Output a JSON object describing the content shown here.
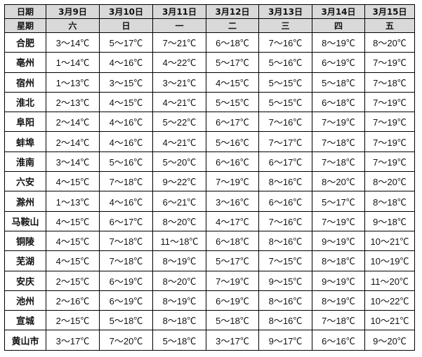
{
  "header": {
    "date_label": "日期",
    "weekday_label": "星期",
    "dates": [
      "3月9日",
      "3月10日",
      "3月11日",
      "3月12日",
      "3月13日",
      "3月14日",
      "3月15日"
    ],
    "weekdays": [
      "六",
      "日",
      "一",
      "二",
      "三",
      "四",
      "五"
    ]
  },
  "rows": [
    {
      "city": "合肥",
      "temps": [
        "3～14℃",
        "5～17℃",
        "7～21℃",
        "6～18℃",
        "7～16℃",
        "8～19℃",
        "8～20℃"
      ]
    },
    {
      "city": "亳州",
      "temps": [
        "1～14℃",
        "4～16℃",
        "4～22℃",
        "5～17℃",
        "5～16℃",
        "6～19℃",
        "7～19℃"
      ]
    },
    {
      "city": "宿州",
      "temps": [
        "1～13℃",
        "3～15℃",
        "3～21℃",
        "4～15℃",
        "5～15℃",
        "5～18℃",
        "7～18℃"
      ]
    },
    {
      "city": "淮北",
      "temps": [
        "2～13℃",
        "4～15℃",
        "4～21℃",
        "5～15℃",
        "5～15℃",
        "6～18℃",
        "7～19℃"
      ]
    },
    {
      "city": "阜阳",
      "temps": [
        "2～14℃",
        "4～16℃",
        "5～22℃",
        "6～17℃",
        "7～16℃",
        "7～19℃",
        "7～19℃"
      ]
    },
    {
      "city": "蚌埠",
      "temps": [
        "2～14℃",
        "4～16℃",
        "4～21℃",
        "5～16℃",
        "7～17℃",
        "7～18℃",
        "7～19℃"
      ]
    },
    {
      "city": "淮南",
      "temps": [
        "3～14℃",
        "5～16℃",
        "5～20℃",
        "6～16℃",
        "6～17℃",
        "7～18℃",
        "7～19℃"
      ]
    },
    {
      "city": "六安",
      "temps": [
        "4～15℃",
        "7～18℃",
        "9～22℃",
        "7～19℃",
        "8～16℃",
        "8～20℃",
        "8～20℃"
      ]
    },
    {
      "city": "滁州",
      "temps": [
        "1～13℃",
        "4～16℃",
        "6～21℃",
        "3～16℃",
        "6～16℃",
        "5～17℃",
        "8～18℃"
      ]
    },
    {
      "city": "马鞍山",
      "temps": [
        "4～15℃",
        "6～17℃",
        "8～20℃",
        "4～17℃",
        "7～16℃",
        "7～19℃",
        "9～18℃"
      ]
    },
    {
      "city": "铜陵",
      "temps": [
        "4～15℃",
        "7～18℃",
        "11～18℃",
        "6～18℃",
        "8～16℃",
        "9～19℃",
        "10～21℃"
      ]
    },
    {
      "city": "芜湖",
      "temps": [
        "4～15℃",
        "7～18℃",
        "8～19℃",
        "5～17℃",
        "7～15℃",
        "8～18℃",
        "10～19℃"
      ]
    },
    {
      "city": "安庆",
      "temps": [
        "2～15℃",
        "6～19℃",
        "8～20℃",
        "7～19℃",
        "9～15℃",
        "9～19℃",
        "11～20℃"
      ]
    },
    {
      "city": "池州",
      "temps": [
        "2～16℃",
        "6～19℃",
        "8～19℃",
        "6～19℃",
        "8～16℃",
        "8～19℃",
        "10～22℃"
      ]
    },
    {
      "city": "宣城",
      "temps": [
        "2～15℃",
        "5～18℃",
        "8～18℃",
        "5～18℃",
        "8～16℃",
        "7～18℃",
        "10～21℃"
      ]
    },
    {
      "city": "黄山市",
      "temps": [
        "3～17℃",
        "7～20℃",
        "5～18℃",
        "3～17℃",
        "9～17℃",
        "6～16℃",
        "9～20℃"
      ]
    }
  ]
}
